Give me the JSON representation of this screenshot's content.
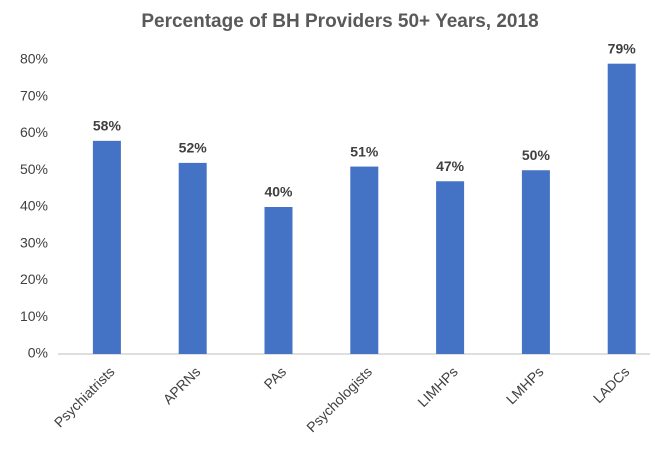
{
  "chart_data": {
    "type": "bar",
    "title": "Percentage of BH Providers 50+ Years, 2018",
    "categories": [
      "Psychiatrists",
      "APRNs",
      "PAs",
      "Psychologists",
      "LIMHPs",
      "LMHPs",
      "LADCs"
    ],
    "values": [
      58,
      52,
      40,
      51,
      47,
      50,
      79
    ],
    "value_labels": [
      "58%",
      "52%",
      "40%",
      "51%",
      "47%",
      "50%",
      "79%"
    ],
    "color": "#4472c4",
    "ylim": [
      0,
      80
    ],
    "yticks": [
      {
        "value": 0,
        "label": "0%"
      },
      {
        "value": 10,
        "label": "10%"
      },
      {
        "value": 20,
        "label": "20%"
      },
      {
        "value": 30,
        "label": "30%"
      },
      {
        "value": 40,
        "label": "40%"
      },
      {
        "value": 50,
        "label": "50%"
      },
      {
        "value": 60,
        "label": "60%"
      },
      {
        "value": 70,
        "label": "70%"
      },
      {
        "value": 80,
        "label": "80%"
      }
    ],
    "grid": false
  }
}
